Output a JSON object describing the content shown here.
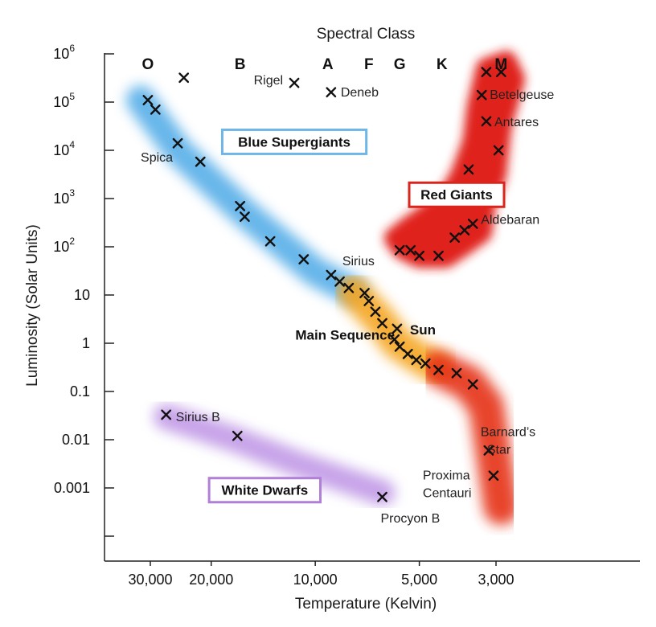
{
  "chart_data": {
    "type": "scatter",
    "title": "Spectral Class",
    "xlabel": "Temperature (Kelvin)",
    "ylabel": "Luminosity (Solar Units)",
    "x_scale": "log-reversed",
    "y_scale": "log",
    "x_ticks": [
      {
        "label": "30,000",
        "value": 30000
      },
      {
        "label": "20,000",
        "value": 20000
      },
      {
        "label": "10,000",
        "value": 10000
      },
      {
        "label": "5,000",
        "value": 5000
      },
      {
        "label": "3,000",
        "value": 3000
      }
    ],
    "y_ticks": [
      {
        "label": "10",
        "sup": "6",
        "value": 1000000
      },
      {
        "label": "10",
        "sup": "5",
        "value": 100000
      },
      {
        "label": "10",
        "sup": "4",
        "value": 10000
      },
      {
        "label": "10",
        "sup": "3",
        "value": 1000
      },
      {
        "label": "10",
        "sup": "2",
        "value": 100
      },
      {
        "label": "10",
        "sup": "",
        "value": 10
      },
      {
        "label": "1",
        "sup": "",
        "value": 1
      },
      {
        "label": "0.1",
        "sup": "",
        "value": 0.1
      },
      {
        "label": "0.01",
        "sup": "",
        "value": 0.01
      },
      {
        "label": "0.001",
        "sup": "",
        "value": 0.001
      }
    ],
    "spectral_classes": [
      {
        "label": "O",
        "temperature": 30500
      },
      {
        "label": "B",
        "temperature": 16500
      },
      {
        "label": "A",
        "temperature": 9200
      },
      {
        "label": "F",
        "temperature": 7000
      },
      {
        "label": "G",
        "temperature": 5700
      },
      {
        "label": "K",
        "temperature": 4300
      },
      {
        "label": "M",
        "temperature": 2900
      }
    ],
    "regions": [
      {
        "label": "Blue Supergiants",
        "color": "#6fb6e8",
        "temperature": 11500,
        "luminosity": 15000
      },
      {
        "label": "Red Giants",
        "color": "#d9251c",
        "temperature": 3900,
        "luminosity": 1200
      },
      {
        "label": "Main Sequence",
        "color": "",
        "temperature": 8200,
        "luminosity": 1.5
      },
      {
        "label": "White Dwarfs",
        "color": "#b07fd6",
        "temperature": 14000,
        "luminosity": 0.0009
      }
    ],
    "bands": [
      {
        "name": "blue",
        "color": "#56aee8",
        "width": 36,
        "points": [
          [
            32000,
            110000
          ],
          [
            25000,
            10000
          ],
          [
            16000,
            500
          ],
          [
            10000,
            30
          ],
          [
            7800,
            12
          ]
        ]
      },
      {
        "name": "orange",
        "color": "#f5a623",
        "width": 40,
        "points": [
          [
            7800,
            12
          ],
          [
            6500,
            3
          ],
          [
            5800,
            1
          ],
          [
            5000,
            0.5
          ],
          [
            4400,
            0.3
          ]
        ]
      },
      {
        "name": "red-ms",
        "color": "#e53018",
        "width": 44,
        "points": [
          [
            4400,
            0.3
          ],
          [
            3600,
            0.15
          ],
          [
            3200,
            0.05
          ],
          [
            3050,
            0.005
          ],
          [
            2900,
            0.0004
          ]
        ]
      },
      {
        "name": "white-dwarfs",
        "color": "#c19ae6",
        "width": 32,
        "points": [
          [
            27000,
            0.03
          ],
          [
            17000,
            0.01
          ],
          [
            11000,
            0.003
          ],
          [
            6400,
            0.0008
          ]
        ]
      }
    ],
    "red_giant_blob": {
      "color": "#e0241a",
      "points": [
        [
          5600,
          90
        ],
        [
          5000,
          60
        ],
        [
          4200,
          60
        ],
        [
          3700,
          110
        ],
        [
          3300,
          200
        ],
        [
          3200,
          1000
        ],
        [
          3000,
          3000
        ],
        [
          2900,
          30000
        ],
        [
          2650,
          300000
        ],
        [
          2800,
          700000
        ],
        [
          3200,
          500000
        ],
        [
          3400,
          80000
        ],
        [
          3500,
          15000
        ],
        [
          3800,
          3000
        ],
        [
          4200,
          900
        ],
        [
          4800,
          450
        ],
        [
          5400,
          250
        ],
        [
          5900,
          150
        ]
      ]
    },
    "stars": [
      {
        "label": "",
        "temperature": 30500,
        "luminosity": 110000
      },
      {
        "label": "",
        "temperature": 29000,
        "luminosity": 70000
      },
      {
        "label": "",
        "temperature": 24000,
        "luminosity": 320000
      },
      {
        "label": "Spica",
        "temperature": 25000,
        "luminosity": 14000
      },
      {
        "label": "",
        "temperature": 21500,
        "luminosity": 5800
      },
      {
        "label": "",
        "temperature": 16500,
        "luminosity": 700
      },
      {
        "label": "",
        "temperature": 16000,
        "luminosity": 420
      },
      {
        "label": "",
        "temperature": 13500,
        "luminosity": 130
      },
      {
        "label": "",
        "temperature": 10800,
        "luminosity": 55
      },
      {
        "label": "Sirius",
        "temperature": 9000,
        "luminosity": 26
      },
      {
        "label": "",
        "temperature": 8500,
        "luminosity": 19
      },
      {
        "label": "",
        "temperature": 8000,
        "luminosity": 14
      },
      {
        "label": "",
        "temperature": 7200,
        "luminosity": 11
      },
      {
        "label": "",
        "temperature": 7000,
        "luminosity": 7.5
      },
      {
        "label": "",
        "temperature": 6700,
        "luminosity": 4.5
      },
      {
        "label": "",
        "temperature": 6400,
        "luminosity": 2.6
      },
      {
        "label": "Sun",
        "temperature": 5800,
        "luminosity": 2.0
      },
      {
        "label": "",
        "temperature": 5900,
        "luminosity": 1.2
      },
      {
        "label": "",
        "temperature": 5700,
        "luminosity": 0.85
      },
      {
        "label": "",
        "temperature": 5400,
        "luminosity": 0.6
      },
      {
        "label": "",
        "temperature": 5100,
        "luminosity": 0.45
      },
      {
        "label": "",
        "temperature": 4800,
        "luminosity": 0.38
      },
      {
        "label": "",
        "temperature": 4400,
        "luminosity": 0.28
      },
      {
        "label": "",
        "temperature": 3900,
        "luminosity": 0.24
      },
      {
        "label": "",
        "temperature": 3500,
        "luminosity": 0.14
      },
      {
        "label": "Rigel",
        "temperature": 11500,
        "luminosity": 250000
      },
      {
        "label": "Deneb",
        "temperature": 9000,
        "luminosity": 160000
      },
      {
        "label": "",
        "temperature": 3200,
        "luminosity": 420000
      },
      {
        "label": "",
        "temperature": 2900,
        "luminosity": 420000
      },
      {
        "label": "Betelgeuse",
        "temperature": 3300,
        "luminosity": 140000
      },
      {
        "label": "Antares",
        "temperature": 3200,
        "luminosity": 40000
      },
      {
        "label": "",
        "temperature": 2950,
        "luminosity": 10000
      },
      {
        "label": "",
        "temperature": 3600,
        "luminosity": 4000
      },
      {
        "label": "Aldebaran",
        "temperature": 3500,
        "luminosity": 300
      },
      {
        "label": "",
        "temperature": 3700,
        "luminosity": 220
      },
      {
        "label": "",
        "temperature": 3950,
        "luminosity": 155
      },
      {
        "label": "",
        "temperature": 4400,
        "luminosity": 65
      },
      {
        "label": "",
        "temperature": 5000,
        "luminosity": 65
      },
      {
        "label": "",
        "temperature": 5300,
        "luminosity": 85
      },
      {
        "label": "",
        "temperature": 5700,
        "luminosity": 85
      },
      {
        "label": "Sirius B",
        "temperature": 27000,
        "luminosity": 0.033
      },
      {
        "label": "",
        "temperature": 16800,
        "luminosity": 0.012
      },
      {
        "label": "Procyon B",
        "temperature": 6400,
        "luminosity": 0.00065
      },
      {
        "label": "Barnard’s",
        "label2": "Star",
        "temperature": 3150,
        "luminosity": 0.006
      },
      {
        "label": "Proxima",
        "label2": "Centauri",
        "temperature": 3050,
        "luminosity": 0.0018
      }
    ],
    "grid": false,
    "legend": "none"
  }
}
